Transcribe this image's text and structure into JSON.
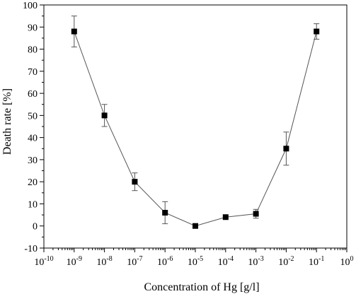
{
  "chart_data": {
    "type": "scatter",
    "title": "",
    "xlabel": "Concentration of Hg [g/l]",
    "ylabel": "Death rate [%]",
    "x_scale": "log",
    "x_tick_exponents": [
      -10,
      -9,
      -8,
      -7,
      -6,
      -5,
      -4,
      -3,
      -2,
      -1,
      0
    ],
    "x_tick_base": "10",
    "xlim": [
      1e-10,
      1
    ],
    "ylim": [
      -10,
      100
    ],
    "y_ticks": [
      -10,
      0,
      10,
      20,
      30,
      40,
      50,
      60,
      70,
      80,
      90,
      100
    ],
    "grid": false,
    "legend": "none",
    "series": [
      {
        "x": [
          1e-09,
          1e-08,
          1e-07,
          1e-06,
          1e-05,
          0.0001,
          0.001,
          0.01,
          0.1
        ],
        "y": [
          88,
          50,
          20,
          6,
          0,
          4,
          5.5,
          35,
          88
        ],
        "error": [
          7,
          5,
          4,
          5,
          0,
          0,
          2,
          7.5,
          3.5
        ],
        "marker": "square",
        "color": "#000000",
        "line_color": "#555555"
      }
    ]
  }
}
